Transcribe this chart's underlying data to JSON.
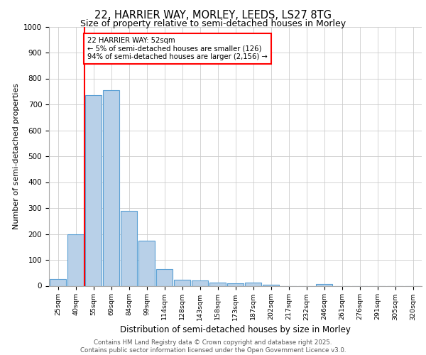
{
  "title_line1": "22, HARRIER WAY, MORLEY, LEEDS, LS27 8TG",
  "title_line2": "Size of property relative to semi-detached houses in Morley",
  "xlabel": "Distribution of semi-detached houses by size in Morley",
  "ylabel": "Number of semi-detached properties",
  "categories": [
    "25sqm",
    "40sqm",
    "55sqm",
    "69sqm",
    "84sqm",
    "99sqm",
    "114sqm",
    "128sqm",
    "143sqm",
    "158sqm",
    "173sqm",
    "187sqm",
    "202sqm",
    "217sqm",
    "232sqm",
    "246sqm",
    "261sqm",
    "276sqm",
    "291sqm",
    "305sqm",
    "320sqm"
  ],
  "values": [
    27,
    200,
    735,
    755,
    290,
    175,
    65,
    22,
    20,
    13,
    10,
    12,
    5,
    0,
    0,
    8,
    0,
    0,
    0,
    0,
    0
  ],
  "bar_color": "#b8d0e8",
  "bar_edge_color": "#5a9fd4",
  "vline_color": "red",
  "vline_x_index": 1.5,
  "annotation_title": "22 HARRIER WAY: 52sqm",
  "annotation_line1": "← 5% of semi-detached houses are smaller (126)",
  "annotation_line2": "94% of semi-detached houses are larger (2,156) →",
  "annotation_box_color": "white",
  "annotation_edge_color": "red",
  "ylim": [
    0,
    1000
  ],
  "yticks": [
    0,
    100,
    200,
    300,
    400,
    500,
    600,
    700,
    800,
    900,
    1000
  ],
  "footer_line1": "Contains HM Land Registry data © Crown copyright and database right 2025.",
  "footer_line2": "Contains public sector information licensed under the Open Government Licence v3.0.",
  "background_color": "white",
  "grid_color": "#cccccc"
}
